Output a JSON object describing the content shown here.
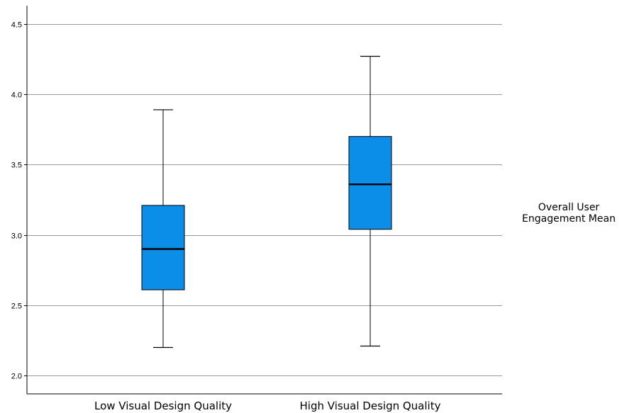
{
  "chart_data": {
    "type": "box",
    "title": "",
    "xlabel": "",
    "ylabel": "",
    "ylim": [
      1.87,
      4.63
    ],
    "yticks": [
      "2.0",
      "2.5",
      "3.0",
      "3.5",
      "4.0",
      "4.5"
    ],
    "grid": true,
    "legend_position": "right",
    "legend_text": [
      "Overall User",
      "Engagement Mean"
    ],
    "box_color": "#0a8ee8",
    "categories": [
      "Low Visual Design Quality",
      "High Visual Design Quality"
    ],
    "boxes": [
      {
        "category": "Low Visual Design Quality",
        "min": 2.2,
        "q1": 2.61,
        "median": 2.9,
        "q3": 3.21,
        "max": 3.89
      },
      {
        "category": "High Visual Design Quality",
        "min": 2.21,
        "q1": 3.04,
        "median": 3.36,
        "q3": 3.7,
        "max": 4.27
      }
    ]
  }
}
